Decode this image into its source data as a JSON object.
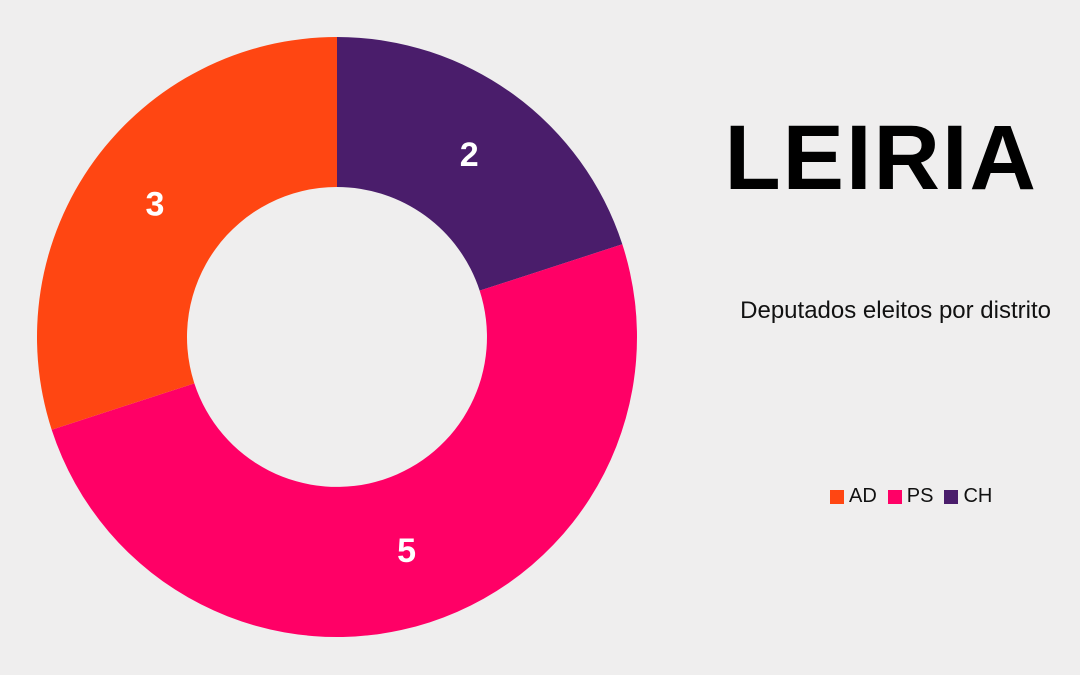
{
  "chart_data": {
    "type": "pie",
    "variant": "donut",
    "title": "LEIRIA",
    "subtitle": "Deputados eleitos por distrito",
    "categories": [
      "AD",
      "PS",
      "CH"
    ],
    "values": [
      3,
      5,
      2
    ],
    "colors": [
      "#ff4612",
      "#ff0066",
      "#4a1d6b"
    ],
    "data_labels": [
      "3",
      "5",
      "2"
    ],
    "legend": "bottom-right",
    "start": "top",
    "order_clockwise": [
      "CH",
      "PS",
      "AD"
    ],
    "background": "#efeeee"
  }
}
